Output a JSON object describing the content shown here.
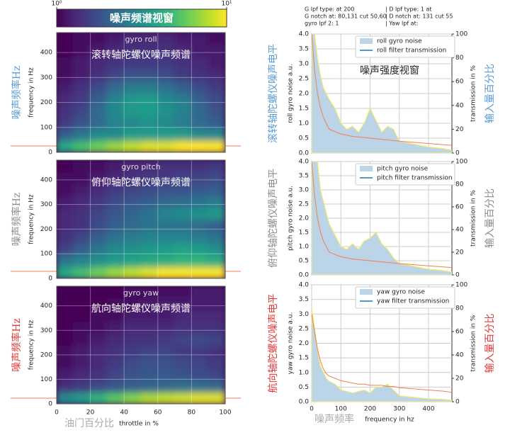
{
  "chart_data": [
    {
      "type": "colorbar",
      "title": "噪声频谱视窗",
      "clim": [
        1,
        10
      ],
      "log": true,
      "ticks": [
        {
          "value": 1,
          "label": "10⁰"
        },
        {
          "value": 10,
          "label": "10¹"
        }
      ]
    },
    {
      "type": "heatmap",
      "title": "gyro roll",
      "annotation": "滚转轴陀螺仪噪声频谱",
      "ylabel": "frequency in Hz",
      "ylabel_annotation": "噪声频率Hz",
      "annotation_color": "#5b9bd5",
      "xbins": [
        0,
        10,
        20,
        30,
        40,
        50,
        60,
        70,
        80,
        90,
        100
      ],
      "ybins": [
        0,
        48,
        96,
        144,
        192,
        240,
        288,
        336,
        384,
        432,
        480
      ],
      "xlim": [
        0,
        100
      ],
      "ylim": [
        0,
        480
      ],
      "xticks": [
        0,
        20,
        40,
        60,
        80,
        100
      ],
      "yticks": [
        0,
        100,
        200,
        300,
        400
      ],
      "grid": true,
      "values": [
        [
          4,
          5,
          6,
          7,
          8,
          9,
          9,
          10,
          10,
          10
        ],
        [
          2,
          2.5,
          3,
          3,
          3.5,
          3.5,
          3.5,
          3.5,
          3,
          3
        ],
        [
          1.5,
          1.8,
          2.2,
          2.8,
          3,
          3.2,
          3,
          2.6,
          2.2,
          2
        ],
        [
          1.4,
          1.6,
          2.2,
          3,
          3.4,
          3.6,
          3.2,
          2.8,
          2.2,
          1.8
        ],
        [
          1.3,
          1.5,
          2,
          2.8,
          3.4,
          3.5,
          3,
          2.6,
          2,
          1.7
        ],
        [
          1.2,
          1.4,
          1.7,
          2.2,
          2.6,
          2.6,
          2.3,
          2,
          1.7,
          1.5
        ],
        [
          1.1,
          1.2,
          1.4,
          1.6,
          1.8,
          1.8,
          1.7,
          1.5,
          1.4,
          1.3
        ],
        [
          1.1,
          1.2,
          1.3,
          1.4,
          1.5,
          1.5,
          1.5,
          1.4,
          1.3,
          1.2
        ],
        [
          1,
          1.1,
          1.2,
          1.3,
          1.4,
          1.4,
          1.4,
          1.3,
          1.2,
          1.2
        ],
        [
          1,
          1.1,
          1.1,
          1.2,
          1.3,
          1.3,
          1.3,
          1.2,
          1.2,
          1.1
        ]
      ]
    },
    {
      "type": "heatmap",
      "title": "gyro pitch",
      "annotation": "俯仰轴陀螺仪噪声频谱",
      "ylabel": "frequency in Hz",
      "ylabel_annotation": "噪声频率Hz",
      "annotation_color": "#8c8c8c",
      "xbins": [
        0,
        10,
        20,
        30,
        40,
        50,
        60,
        70,
        80,
        90,
        100
      ],
      "ybins": [
        0,
        48,
        96,
        144,
        192,
        240,
        288,
        336,
        384,
        432,
        480
      ],
      "xlim": [
        0,
        100
      ],
      "ylim": [
        0,
        480
      ],
      "xticks": [
        0,
        20,
        40,
        60,
        80,
        100
      ],
      "yticks": [
        0,
        100,
        200,
        300,
        400
      ],
      "grid": true,
      "values": [
        [
          4,
          5,
          6,
          7,
          8,
          9,
          10,
          10,
          10,
          10
        ],
        [
          2.5,
          2.8,
          3.2,
          3.5,
          3.8,
          4,
          4.2,
          4.5,
          4.5,
          4.2
        ],
        [
          1.6,
          2,
          2.5,
          3,
          3.2,
          3.4,
          3.6,
          3.8,
          3.6,
          3.2
        ],
        [
          1.4,
          1.6,
          2,
          2.4,
          2.6,
          2.8,
          2.8,
          2.8,
          2.6,
          2.4
        ],
        [
          1.3,
          1.4,
          1.7,
          2,
          2.2,
          2.4,
          2.4,
          2.4,
          2.2,
          2
        ],
        [
          1.3,
          1.4,
          1.6,
          1.9,
          2.1,
          2.4,
          2.8,
          3,
          3.2,
          3.4
        ],
        [
          1.2,
          1.3,
          1.5,
          1.7,
          1.9,
          2,
          2.2,
          2.3,
          2.4,
          2.6
        ],
        [
          1.1,
          1.2,
          1.3,
          1.5,
          1.6,
          1.7,
          1.8,
          1.8,
          1.9,
          2
        ],
        [
          1.1,
          1.1,
          1.2,
          1.3,
          1.4,
          1.5,
          1.5,
          1.6,
          1.6,
          1.7
        ],
        [
          1,
          1.1,
          1.1,
          1.2,
          1.3,
          1.3,
          1.4,
          1.4,
          1.4,
          1.5
        ]
      ]
    },
    {
      "type": "heatmap",
      "title": "gyro yaw",
      "annotation": "航向轴陀螺仪噪声频谱",
      "ylabel": "frequency in Hz",
      "ylabel_annotation": "噪声频率Hz",
      "annotation_color": "#e03a3a",
      "xlabel": "throttle in %",
      "xlabel_annotation": "油门百分比",
      "xbins": [
        0,
        10,
        20,
        30,
        40,
        50,
        60,
        70,
        80,
        90,
        100
      ],
      "ybins": [
        0,
        48,
        96,
        144,
        192,
        240,
        288,
        336,
        384,
        432,
        480
      ],
      "xlim": [
        0,
        100
      ],
      "ylim": [
        0,
        480
      ],
      "xticks": [
        0,
        20,
        40,
        60,
        80,
        100
      ],
      "yticks": [
        0,
        100,
        200,
        300,
        400
      ],
      "grid": true,
      "values": [
        [
          3,
          3.5,
          4.5,
          5.5,
          6.5,
          7.5,
          8,
          8.5,
          9,
          9
        ],
        [
          1.4,
          1.5,
          1.7,
          1.9,
          2,
          2.1,
          2.2,
          2.3,
          2.3,
          2.2
        ],
        [
          1.2,
          1.3,
          1.4,
          1.6,
          1.8,
          1.9,
          1.9,
          1.8,
          1.7,
          1.6
        ],
        [
          1.1,
          1.2,
          1.3,
          1.5,
          1.7,
          1.8,
          1.8,
          1.7,
          1.6,
          1.5
        ],
        [
          1.1,
          1.2,
          1.3,
          1.4,
          1.5,
          1.6,
          1.6,
          1.5,
          1.5,
          1.4
        ],
        [
          1,
          1.1,
          1.2,
          1.3,
          1.4,
          1.4,
          1.5,
          1.6,
          1.7,
          1.6
        ],
        [
          1,
          1.1,
          1.1,
          1.2,
          1.3,
          1.3,
          1.3,
          1.4,
          1.4,
          1.4
        ],
        [
          1,
          1,
          1.1,
          1.1,
          1.2,
          1.2,
          1.2,
          1.3,
          1.3,
          1.3
        ],
        [
          1,
          1,
          1,
          1.1,
          1.1,
          1.2,
          1.2,
          1.2,
          1.2,
          1.2
        ],
        [
          1,
          1,
          1,
          1,
          1.1,
          1.1,
          1.1,
          1.1,
          1.2,
          1.2
        ]
      ]
    },
    {
      "type": "spectrum",
      "header_lines": [
        "G lpf type:  at 200",
        "| D lpf type: 1 at",
        "G notch at: 80,131 cut 50,60",
        "| D notch at: 131 cut 55",
        "gyro lpf 2: 1",
        "| Yaw lpf at:"
      ],
      "annotation": "噪声强度视窗",
      "ylabel": "roll gyro noise a.u.",
      "ylabel_annotation": "滚转轴陀螺仪噪声电平",
      "y2label": "transmission in %",
      "y2label_annotation": "输入量百分比",
      "annotation_color": "#5b9bd5",
      "x": [
        0,
        10,
        20,
        30,
        40,
        50,
        60,
        80,
        100,
        120,
        140,
        160,
        180,
        200,
        220,
        240,
        260,
        280,
        300,
        350,
        400,
        450,
        480
      ],
      "xlim": [
        0,
        480
      ],
      "ylim": [
        0,
        4
      ],
      "y2lim": [
        0,
        100
      ],
      "xticks": [
        0,
        100,
        200,
        300,
        400
      ],
      "yticks": [
        {
          "value": 0,
          "label": "0.0"
        },
        {
          "value": 0.5,
          "label": "0.5"
        },
        {
          "value": 1,
          "label": "1.0"
        },
        {
          "value": 1.5,
          "label": "1.5"
        },
        {
          "value": 2,
          "label": "2.0"
        },
        {
          "value": 2.5,
          "label": "2.5"
        },
        {
          "value": 3,
          "label": "3.0"
        },
        {
          "value": 3.5,
          "label": "3.5"
        },
        {
          "value": 4,
          "label": "4.0"
        }
      ],
      "y2ticks": [
        0,
        20,
        40,
        60,
        80,
        100
      ],
      "grid": true,
      "series": [
        {
          "name": "roll gyro noise",
          "color": "#bcd4e8",
          "edge_color": "#f0ec6e",
          "values": [
            4,
            4,
            3.2,
            2.6,
            2.2,
            2,
            1.8,
            1.5,
            1,
            0.8,
            0.9,
            0.7,
            1,
            1.5,
            1.1,
            0.7,
            0.9,
            0.8,
            0.4,
            0.3,
            0.2,
            0.15,
            0.1
          ]
        },
        {
          "name": "roll filter transmission",
          "color": "#f08050",
          "legend_color": "#1f77b4",
          "axis": "y2",
          "values": [
            100,
            70,
            50,
            38,
            30,
            25,
            20,
            18,
            16,
            15,
            14,
            13.5,
            13,
            12.5,
            12,
            11.5,
            11,
            10.5,
            10,
            9,
            8,
            7,
            6.5
          ]
        }
      ]
    },
    {
      "type": "spectrum",
      "ylabel": "pitch gyro noise a.u.",
      "ylabel_annotation": "俯仰轴陀螺仪噪声电平",
      "y2label": "transmission in %",
      "y2label_annotation": "输入量百分比",
      "annotation_color": "#8c8c8c",
      "x": [
        0,
        10,
        20,
        30,
        40,
        50,
        60,
        80,
        100,
        120,
        140,
        160,
        180,
        200,
        220,
        240,
        260,
        280,
        300,
        350,
        400,
        450,
        480
      ],
      "xlim": [
        0,
        480
      ],
      "ylim": [
        0,
        4
      ],
      "y2lim": [
        0,
        100
      ],
      "xticks": [
        0,
        100,
        200,
        300,
        400
      ],
      "yticks": [
        {
          "value": 0,
          "label": "0.0"
        },
        {
          "value": 0.5,
          "label": "0.5"
        },
        {
          "value": 1,
          "label": "1.0"
        },
        {
          "value": 1.5,
          "label": "1.5"
        },
        {
          "value": 2,
          "label": "2.0"
        },
        {
          "value": 2.5,
          "label": "2.5"
        },
        {
          "value": 3,
          "label": "3.0"
        },
        {
          "value": 3.5,
          "label": "3.5"
        },
        {
          "value": 4,
          "label": "4.0"
        }
      ],
      "y2ticks": [
        0,
        20,
        40,
        60,
        80,
        100
      ],
      "grid": true,
      "series": [
        {
          "name": "pitch gyro noise",
          "color": "#bcd4e8",
          "edge_color": "#f0ec6e",
          "values": [
            4,
            4,
            4,
            3,
            2.6,
            2.2,
            1.8,
            1.4,
            1,
            0.9,
            1.1,
            0.9,
            1.2,
            1.3,
            1.5,
            1.1,
            0.9,
            0.6,
            0.4,
            0.3,
            0.2,
            0.15,
            0.1
          ]
        },
        {
          "name": "pitch filter transmission",
          "color": "#f08050",
          "legend_color": "#1f77b4",
          "axis": "y2",
          "values": [
            100,
            70,
            50,
            38,
            30,
            25,
            20,
            18,
            16,
            15,
            14,
            13.5,
            13,
            12.5,
            12,
            11.5,
            11,
            10.5,
            10,
            9,
            8,
            7,
            6.5
          ]
        }
      ]
    },
    {
      "type": "spectrum",
      "ylabel": "yaw gyro noise a.u.",
      "ylabel_annotation": "航向轴陀螺仪噪声电平",
      "y2label": "transmission in %",
      "y2label_annotation": "输入量百分比",
      "annotation_color": "#e03a3a",
      "xlabel": "frequency in hz",
      "xlabel_annotation": "噪声频率",
      "x": [
        0,
        10,
        20,
        30,
        40,
        50,
        60,
        80,
        100,
        120,
        140,
        160,
        180,
        200,
        220,
        240,
        260,
        280,
        300,
        350,
        400,
        450,
        480
      ],
      "xlim": [
        0,
        480
      ],
      "ylim": [
        0,
        4
      ],
      "y2lim": [
        0,
        100
      ],
      "xticks": [
        0,
        100,
        200,
        300,
        400
      ],
      "yticks": [
        {
          "value": 0,
          "label": "0.0"
        },
        {
          "value": 0.5,
          "label": "0.5"
        },
        {
          "value": 1,
          "label": "1.0"
        },
        {
          "value": 1.5,
          "label": "1.5"
        },
        {
          "value": 2,
          "label": "2.0"
        },
        {
          "value": 2.5,
          "label": "2.5"
        },
        {
          "value": 3,
          "label": "3.0"
        },
        {
          "value": 3.5,
          "label": "3.5"
        },
        {
          "value": 4,
          "label": "4.0"
        }
      ],
      "y2ticks": [
        0,
        20,
        40,
        60,
        80,
        100
      ],
      "grid": true,
      "series": [
        {
          "name": "yaw gyro noise",
          "color": "#bcd4e8",
          "edge_color": "#f0ec6e",
          "values": [
            3.2,
            2.5,
            1.8,
            1.2,
            1,
            0.8,
            0.7,
            0.6,
            0.4,
            0.35,
            0.3,
            0.35,
            0.4,
            0.3,
            0.5,
            0.5,
            0.6,
            0.4,
            0.2,
            0.15,
            0.1,
            0.08,
            0.05
          ]
        },
        {
          "name": "yaw filter transmission",
          "color": "#f08050",
          "legend_color": "#1f77b4",
          "axis": "y2",
          "values": [
            75,
            60,
            45,
            35,
            28,
            24,
            22,
            20,
            18,
            17,
            16,
            15,
            15,
            14,
            14,
            14,
            13,
            13,
            12,
            11,
            10,
            9,
            8
          ]
        }
      ]
    }
  ]
}
